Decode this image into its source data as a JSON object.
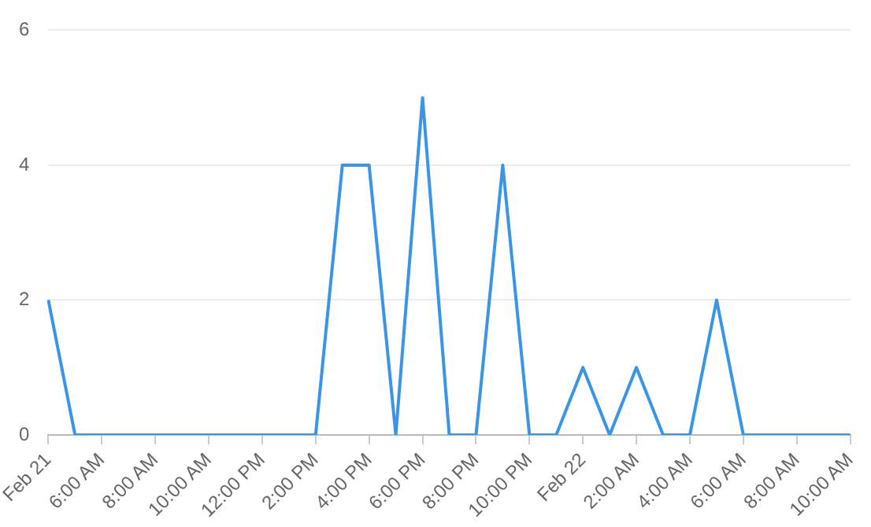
{
  "chart_data": {
    "type": "line",
    "categories": [
      "Feb 21",
      null,
      "6:00 AM",
      null,
      "8:00 AM",
      null,
      "10:00 AM",
      null,
      "12:00 PM",
      null,
      "2:00 PM",
      null,
      "4:00 PM",
      null,
      "6:00 PM",
      null,
      "8:00 PM",
      null,
      "10:00 PM",
      null,
      "Feb 22",
      null,
      "2:00 AM",
      null,
      "4:00 AM",
      null,
      "6:00 AM",
      null,
      "8:00 AM",
      null,
      "10:00 AM"
    ],
    "series": [
      {
        "color": "#3b95e6",
        "values": [
          2,
          0,
          0,
          0,
          0,
          0,
          0,
          0,
          0,
          0,
          0,
          4,
          4,
          0,
          5,
          0,
          0,
          4,
          0,
          0,
          1,
          0,
          1,
          0,
          0,
          2,
          0,
          0,
          0,
          0,
          0
        ]
      }
    ],
    "ylim": [
      0,
      6
    ],
    "yticks": [
      0,
      2,
      4,
      6
    ],
    "grid": "y",
    "legend": false,
    "marker": "none",
    "line_style": "solid"
  }
}
